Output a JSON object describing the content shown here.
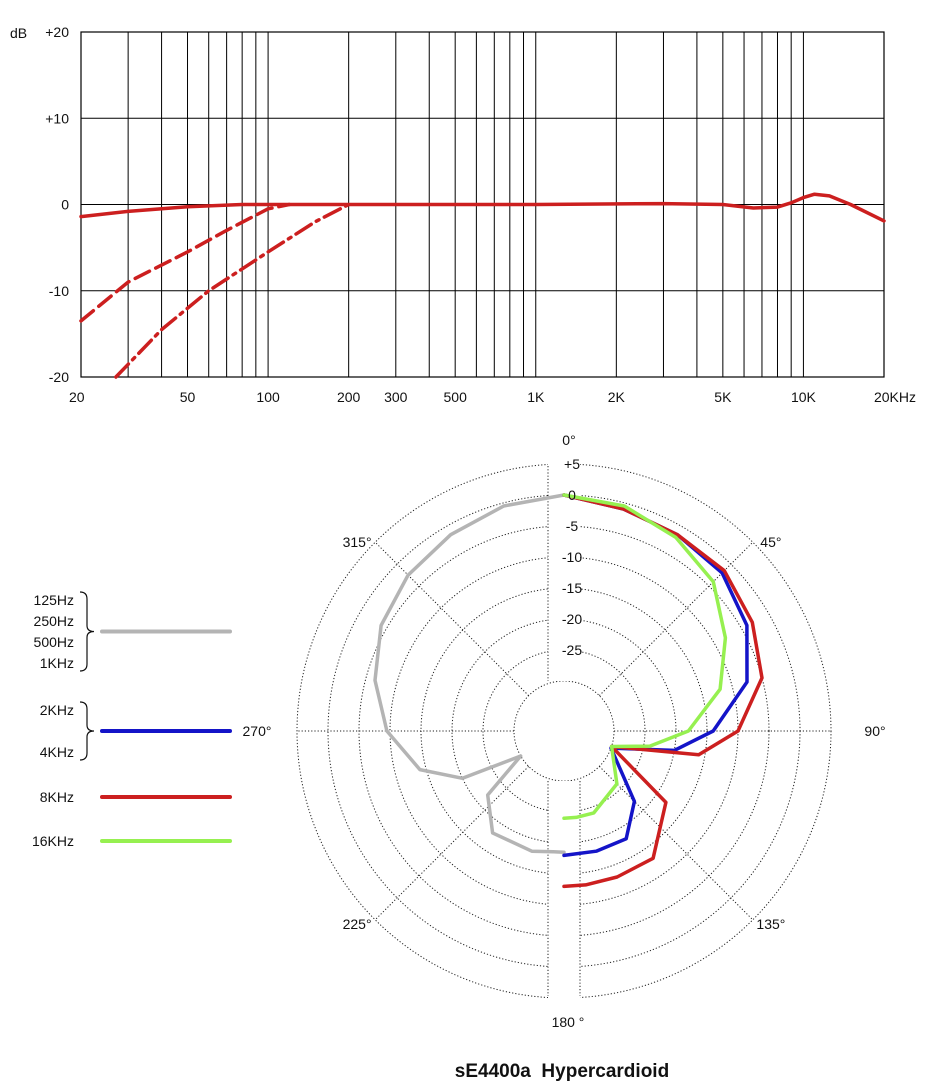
{
  "freq_response": {
    "type": "line",
    "y_unit_label": "dB",
    "y_ticks": [
      "+20",
      "+10",
      "0",
      "-10",
      "-20"
    ],
    "ylim": [
      -20,
      20
    ],
    "x_scale": "log",
    "xlim": [
      20,
      20000
    ],
    "x_tick_labels": [
      {
        "label": "20",
        "value": 20
      },
      {
        "label": "50",
        "value": 50
      },
      {
        "label": "100",
        "value": 100
      },
      {
        "label": "200",
        "value": 200
      },
      {
        "label": "300",
        "value": 300
      },
      {
        "label": "500",
        "value": 500
      },
      {
        "label": "1K",
        "value": 1000
      },
      {
        "label": "2K",
        "value": 2000
      },
      {
        "label": "5K",
        "value": 5000
      },
      {
        "label": "10K",
        "value": 10000
      },
      {
        "label": "20KHz",
        "value": 20000
      }
    ],
    "grid": true,
    "color": "#cc1f1f",
    "series": [
      {
        "style": "solid",
        "points": [
          [
            20,
            -1.4
          ],
          [
            30,
            -0.8
          ],
          [
            50,
            -0.25
          ],
          [
            80,
            0
          ],
          [
            200,
            0
          ],
          [
            1000,
            0
          ],
          [
            3000,
            0.1
          ],
          [
            5000,
            0
          ],
          [
            6500,
            -0.4
          ],
          [
            8000,
            -0.3
          ],
          [
            9000,
            0.2
          ],
          [
            10000,
            0.8
          ],
          [
            11000,
            1.2
          ],
          [
            12500,
            1.0
          ],
          [
            15000,
            0
          ],
          [
            20000,
            -1.9
          ]
        ]
      },
      {
        "style": "dashed",
        "points": [
          [
            20,
            -13.5
          ],
          [
            30,
            -9
          ],
          [
            50,
            -5.5
          ],
          [
            70,
            -3
          ],
          [
            100,
            -0.5
          ],
          [
            120,
            0
          ]
        ]
      },
      {
        "style": "dashdot",
        "points": [
          [
            27,
            -20
          ],
          [
            40,
            -14.5
          ],
          [
            60,
            -10
          ],
          [
            100,
            -5.5
          ],
          [
            150,
            -2
          ],
          [
            200,
            0
          ]
        ]
      }
    ]
  },
  "polar": {
    "type": "polar",
    "title": "sE4400a  Hypercardioid",
    "angle_labels": [
      {
        "text": "0°",
        "angle": 0
      },
      {
        "text": "45°",
        "angle": 45
      },
      {
        "text": "90°",
        "angle": 90
      },
      {
        "text": "135°",
        "angle": 135
      },
      {
        "text": "180 °",
        "angle": 180
      },
      {
        "text": "225°",
        "angle": 225
      },
      {
        "text": "270°",
        "angle": 270
      },
      {
        "text": "315°",
        "angle": 315
      }
    ],
    "r_ticks": [
      "+5",
      "0",
      "-5",
      "-10",
      "-15",
      "-20",
      "-25"
    ],
    "rlim": [
      -30,
      5
    ],
    "legend": [
      {
        "labels": [
          "125Hz",
          "250Hz",
          "500Hz",
          "1KHz"
        ],
        "color": "#b4b4b4",
        "brace": true
      },
      {
        "labels": [
          "2KHz",
          "4KHz"
        ],
        "color": "#1414c8",
        "brace": true
      },
      {
        "labels": [
          "8KHz"
        ],
        "color": "#cc1f1f",
        "brace": false
      },
      {
        "labels": [
          "16KHz"
        ],
        "color": "#96f050",
        "brace": false
      }
    ],
    "series": [
      {
        "name": "125Hz-1KHz",
        "color": "#b4b4b4",
        "side": "left",
        "points": [
          [
            0,
            0
          ],
          [
            15,
            -0.5
          ],
          [
            30,
            -1.5
          ],
          [
            45,
            -2.5
          ],
          [
            60,
            -4
          ],
          [
            75,
            -6.5
          ],
          [
            90,
            -9.5
          ],
          [
            105,
            -14
          ],
          [
            115,
            -20
          ],
          [
            120,
            -30
          ],
          [
            130,
            -22
          ],
          [
            145,
            -18
          ],
          [
            165,
            -18
          ],
          [
            175,
            -18.5
          ],
          [
            180,
            -18.5
          ]
        ]
      },
      {
        "name": "2KHz-4KHz",
        "color": "#1414c8",
        "side": "right",
        "points": [
          [
            0,
            0
          ],
          [
            15,
            -1
          ],
          [
            30,
            -1.5
          ],
          [
            45,
            -2
          ],
          [
            60,
            -4
          ],
          [
            75,
            -7.5
          ],
          [
            90,
            -14
          ],
          [
            100,
            -20
          ],
          [
            110,
            -30
          ],
          [
            135,
            -22
          ],
          [
            150,
            -18
          ],
          [
            165,
            -18
          ],
          [
            180,
            -18
          ]
        ]
      },
      {
        "name": "8KHz",
        "color": "#cc1f1f",
        "side": "right",
        "points": [
          [
            0,
            0
          ],
          [
            15,
            -1
          ],
          [
            30,
            -1.5
          ],
          [
            45,
            -1.5
          ],
          [
            60,
            -3
          ],
          [
            75,
            -5
          ],
          [
            90,
            -10
          ],
          [
            100,
            -16
          ],
          [
            108,
            -30
          ],
          [
            125,
            -18
          ],
          [
            145,
            -13
          ],
          [
            160,
            -13
          ],
          [
            172,
            -13
          ],
          [
            180,
            -13
          ]
        ]
      },
      {
        "name": "16KHz",
        "color": "#96f050",
        "side": "right",
        "points": [
          [
            0,
            0
          ],
          [
            15,
            -0.5
          ],
          [
            30,
            -2
          ],
          [
            45,
            -4
          ],
          [
            60,
            -8
          ],
          [
            75,
            -12
          ],
          [
            90,
            -18
          ],
          [
            100,
            -24
          ],
          [
            108,
            -30
          ],
          [
            135,
            -26
          ],
          [
            160,
            -24
          ],
          [
            172,
            -24
          ],
          [
            180,
            -24
          ]
        ]
      }
    ]
  }
}
